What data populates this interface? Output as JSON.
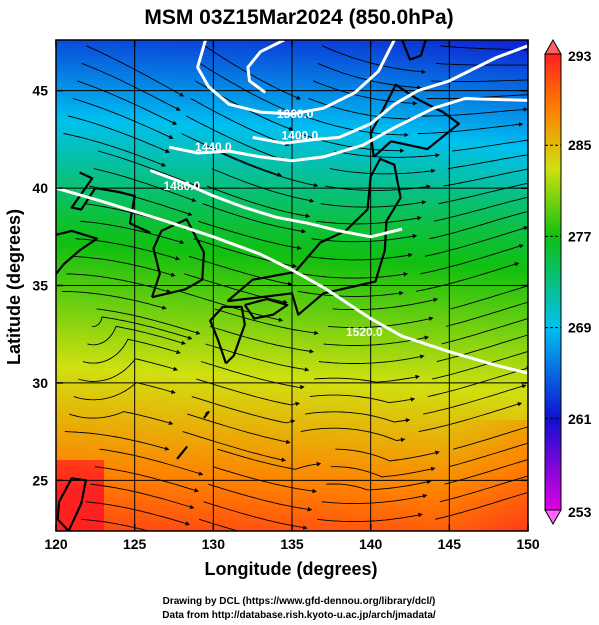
{
  "title": "MSM 03Z15Mar2024 (850.0hPa)",
  "credits": {
    "line1": "Drawing by DCL (https://www.gfd-dennou.org/library/dcl/)",
    "line2": "Data from http://database.rish.kyoto-u.ac.jp/arch/jmadata/"
  },
  "chart_data": {
    "type": "heatmap",
    "title": "MSM 03Z15Mar2024 (850.0hPa)",
    "xlabel": "Longitude (degrees)",
    "ylabel": "Latitude  (degrees)",
    "xlim": [
      120,
      150
    ],
    "ylim": [
      22.4,
      47.6
    ],
    "x_ticks": [
      120,
      125,
      130,
      135,
      140,
      145,
      150
    ],
    "x_tick_labels": [
      "120",
      "125",
      "130",
      "135",
      "140",
      "145",
      "150"
    ],
    "y_ticks": [
      25,
      30,
      35,
      40,
      45
    ],
    "y_tick_labels": [
      "25",
      "30",
      "35",
      "40",
      "45"
    ],
    "grid": true,
    "colorbar": {
      "min": 253,
      "max": 293,
      "ticks": [
        253,
        261,
        269,
        277,
        285,
        293
      ],
      "tick_labels": [
        "253",
        "261",
        "269",
        "277",
        "285",
        "293"
      ],
      "placement": "right",
      "colors": [
        "#e000e0",
        "#1010d0",
        "#00c0f0",
        "#10c010",
        "#d0e010",
        "#ff8000",
        "#ff2020"
      ]
    },
    "contours": [
      {
        "label": "1520.0",
        "points": [
          [
            120,
            40.0
          ],
          [
            123,
            39.3
          ],
          [
            127,
            38.3
          ],
          [
            130,
            37.5
          ],
          [
            133,
            36.6
          ],
          [
            135,
            35.8
          ],
          [
            137,
            34.9
          ],
          [
            138.5,
            34.1
          ],
          [
            140,
            33.3
          ],
          [
            142,
            32.4
          ],
          [
            145,
            31.6
          ],
          [
            148,
            30.9
          ],
          [
            150,
            30.5
          ]
        ],
        "label_at": [
          139.6,
          32.4
        ]
      },
      {
        "label": "1480.0",
        "points": [
          [
            126,
            40.9
          ],
          [
            128,
            40.3
          ],
          [
            130,
            39.6
          ],
          [
            132,
            39.0
          ],
          [
            134,
            38.5
          ],
          [
            136,
            38.2
          ],
          [
            138,
            37.8
          ],
          [
            140,
            37.5
          ],
          [
            142,
            37.9
          ]
        ],
        "label_at": [
          128.0,
          39.9
        ]
      },
      {
        "label": "1440.0",
        "points": [
          [
            127.2,
            42.1
          ],
          [
            129,
            41.8
          ],
          [
            131,
            41.9
          ],
          [
            133,
            41.6
          ],
          [
            135,
            41.4
          ],
          [
            137,
            41.6
          ],
          [
            139.5,
            42.2
          ],
          [
            141.5,
            43.1
          ],
          [
            144,
            44.1
          ],
          [
            146,
            44.6
          ],
          [
            150,
            44.5
          ]
        ],
        "label_at": [
          130.0,
          41.9
        ]
      },
      {
        "label": "1400.0",
        "points": [
          [
            132.5,
            42.6
          ],
          [
            134.5,
            42.3
          ],
          [
            136.5,
            42.5
          ],
          [
            138,
            42.6
          ],
          [
            140,
            43.3
          ],
          [
            141.5,
            44.3
          ],
          [
            143,
            45.0
          ],
          [
            145,
            45.5
          ],
          [
            148,
            46.7
          ],
          [
            150,
            47.3
          ]
        ],
        "label_at": [
          135.5,
          42.5
        ]
      },
      {
        "label": "1360.0",
        "points": [
          [
            129.5,
            47.6
          ],
          [
            129,
            46.2
          ],
          [
            129.7,
            45.2
          ],
          [
            131,
            44.3
          ],
          [
            133,
            43.9
          ],
          [
            135,
            43.8
          ],
          [
            137,
            44.1
          ],
          [
            139,
            44.9
          ],
          [
            140.5,
            46.0
          ],
          [
            141.5,
            47.6
          ]
        ],
        "label_at": [
          135.2,
          43.6
        ]
      },
      {
        "label": "",
        "points": [
          [
            134.5,
            47.6
          ],
          [
            133,
            47.0
          ],
          [
            132.2,
            46.2
          ],
          [
            132.3,
            45.5
          ],
          [
            133.3,
            44.9
          ]
        ],
        "label_at": null
      }
    ]
  }
}
